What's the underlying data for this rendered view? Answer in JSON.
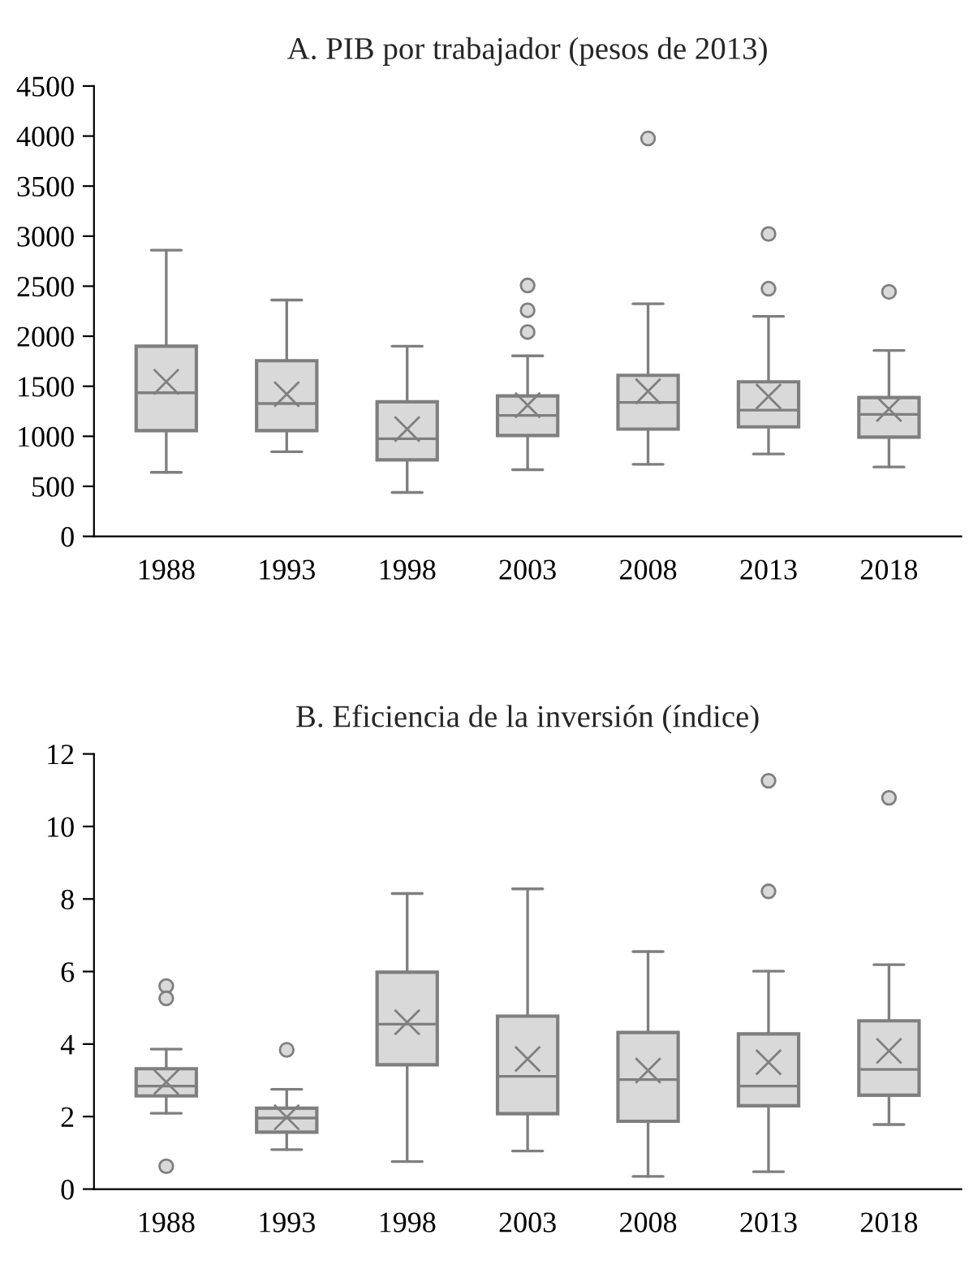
{
  "chart_data": [
    {
      "type": "box",
      "title": "A. PIB por trabajador (pesos de 2013)",
      "categories": [
        "1988",
        "1993",
        "1998",
        "2003",
        "2008",
        "2013",
        "2018"
      ],
      "color": "#d9d9d9",
      "ylim": [
        0,
        4500
      ],
      "yticks": [
        0,
        500,
        1000,
        1500,
        2000,
        2500,
        3000,
        3500,
        4000,
        4500
      ],
      "boxes": [
        {
          "low": 640,
          "q1": 1056,
          "median": 1435,
          "q3": 1900,
          "high": 2860,
          "mean": 1545
        },
        {
          "low": 845,
          "q1": 1056,
          "median": 1327,
          "q3": 1755,
          "high": 2362,
          "mean": 1420
        },
        {
          "low": 439,
          "q1": 764,
          "median": 975,
          "q3": 1344,
          "high": 1900,
          "mean": 1072
        },
        {
          "low": 666,
          "q1": 1008,
          "median": 1208,
          "q3": 1403,
          "high": 1804,
          "mean": 1311,
          "outliers": [
            2507,
            2259,
            2042
          ]
        },
        {
          "low": 720,
          "q1": 1072,
          "median": 1338,
          "q3": 1609,
          "high": 2324,
          "mean": 1450,
          "outliers": [
            3976
          ]
        },
        {
          "low": 823,
          "q1": 1094,
          "median": 1262,
          "q3": 1544,
          "high": 2199,
          "mean": 1398,
          "outliers": [
            3022,
            2475
          ]
        },
        {
          "low": 693,
          "q1": 991,
          "median": 1219,
          "q3": 1387,
          "high": 1858,
          "mean": 1273,
          "outliers": [
            2443
          ]
        }
      ]
    },
    {
      "type": "box",
      "title": "B. Eficiencia de la inversión (índice)",
      "categories": [
        "1988",
        "1993",
        "1998",
        "2003",
        "2008",
        "2013",
        "2018"
      ],
      "color": "#d9d9d9",
      "ylim": [
        0,
        12
      ],
      "yticks": [
        0,
        2,
        4,
        6,
        8,
        10,
        12
      ],
      "boxes": [
        {
          "low": 2.09,
          "q1": 2.57,
          "median": 2.84,
          "q3": 3.32,
          "high": 3.86,
          "mean": 2.95,
          "outliers": [
            5.6,
            5.26,
            0.63
          ]
        },
        {
          "low": 1.09,
          "q1": 1.57,
          "median": 1.96,
          "q3": 2.23,
          "high": 2.75,
          "mean": 1.98,
          "outliers": [
            3.84
          ]
        },
        {
          "low": 0.76,
          "q1": 3.43,
          "median": 4.55,
          "q3": 5.98,
          "high": 8.15,
          "mean": 4.6
        },
        {
          "low": 1.05,
          "q1": 2.08,
          "median": 3.11,
          "q3": 4.77,
          "high": 8.28,
          "mean": 3.59
        },
        {
          "low": 0.35,
          "q1": 1.87,
          "median": 3.02,
          "q3": 4.32,
          "high": 6.55,
          "mean": 3.27
        },
        {
          "low": 0.48,
          "q1": 2.3,
          "median": 2.84,
          "q3": 4.28,
          "high": 6.01,
          "mean": 3.5,
          "outliers": [
            11.26,
            8.21
          ]
        },
        {
          "low": 1.78,
          "q1": 2.59,
          "median": 3.3,
          "q3": 4.64,
          "high": 6.19,
          "mean": 3.81,
          "outliers": [
            10.79
          ]
        }
      ]
    }
  ]
}
